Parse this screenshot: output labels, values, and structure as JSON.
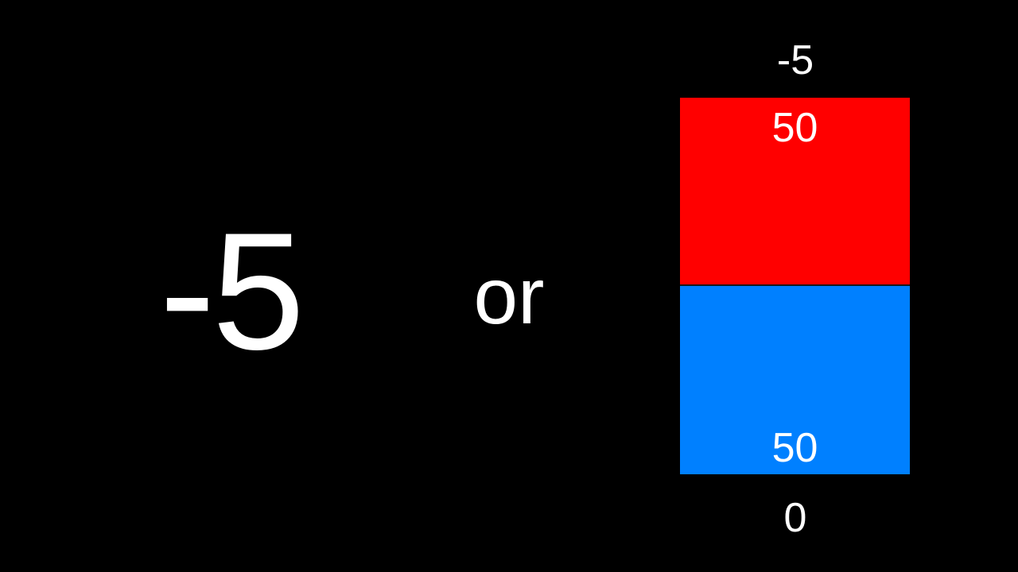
{
  "slide": {
    "big_number": "-5",
    "connector": "or",
    "scale": {
      "top_label": "-5",
      "bottom_label": "0",
      "top_segment": {
        "value_label": "50",
        "color": "#ff0000"
      },
      "bottom_segment": {
        "value_label": "50",
        "color": "#0080ff"
      }
    }
  }
}
